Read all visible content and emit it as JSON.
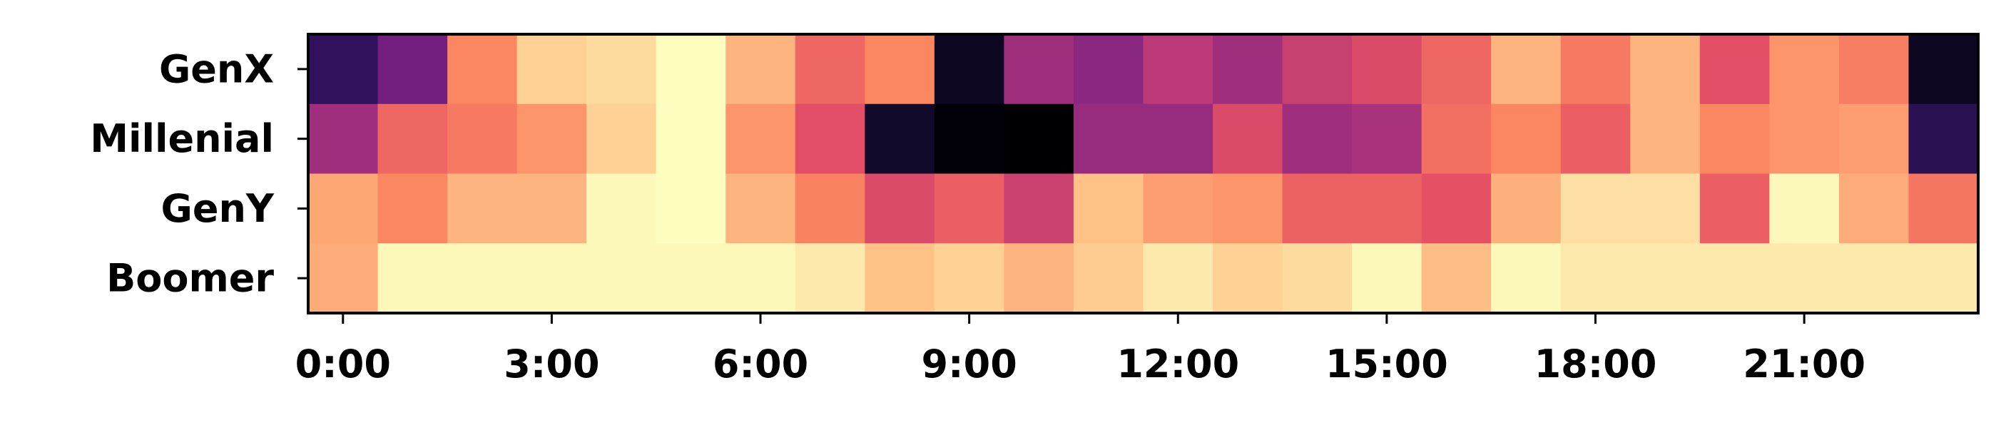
{
  "chart_data": {
    "type": "heatmap",
    "title": "",
    "xlabel": "",
    "ylabel": "",
    "colormap": "magma",
    "rows": [
      "GenX",
      "Millenial",
      "GenY",
      "Boomer"
    ],
    "columns": [
      "0:00",
      "1:00",
      "2:00",
      "3:00",
      "4:00",
      "5:00",
      "6:00",
      "7:00",
      "8:00",
      "9:00",
      "10:00",
      "11:00",
      "12:00",
      "13:00",
      "14:00",
      "15:00",
      "16:00",
      "17:00",
      "18:00",
      "19:00",
      "20:00",
      "21:00",
      "22:00",
      "23:00"
    ],
    "xtick_labels": [
      "0:00",
      "3:00",
      "6:00",
      "9:00",
      "12:00",
      "15:00",
      "18:00",
      "21:00"
    ],
    "xtick_positions": [
      0,
      3,
      6,
      9,
      12,
      15,
      18,
      21
    ],
    "values": [
      [
        0.18,
        0.34,
        0.75,
        0.91,
        0.93,
        1.0,
        0.85,
        0.68,
        0.75,
        0.06,
        0.45,
        0.4,
        0.52,
        0.45,
        0.55,
        0.6,
        0.68,
        0.85,
        0.72,
        0.85,
        0.62,
        0.78,
        0.73,
        0.06
      ],
      [
        0.45,
        0.68,
        0.72,
        0.78,
        0.91,
        1.0,
        0.78,
        0.62,
        0.08,
        0.01,
        0.0,
        0.43,
        0.43,
        0.6,
        0.45,
        0.47,
        0.7,
        0.75,
        0.66,
        0.85,
        0.75,
        0.78,
        0.8,
        0.16
      ],
      [
        0.82,
        0.75,
        0.85,
        0.85,
        0.99,
        1.0,
        0.85,
        0.74,
        0.6,
        0.66,
        0.56,
        0.88,
        0.8,
        0.78,
        0.67,
        0.67,
        0.63,
        0.84,
        0.94,
        0.94,
        0.66,
        0.99,
        0.83,
        0.71
      ],
      [
        0.83,
        0.99,
        0.99,
        0.99,
        0.99,
        0.99,
        0.99,
        0.96,
        0.88,
        0.91,
        0.85,
        0.9,
        0.96,
        0.91,
        0.93,
        0.99,
        0.87,
        0.99,
        0.96,
        0.96,
        0.96,
        0.96,
        0.96,
        0.96
      ]
    ]
  }
}
